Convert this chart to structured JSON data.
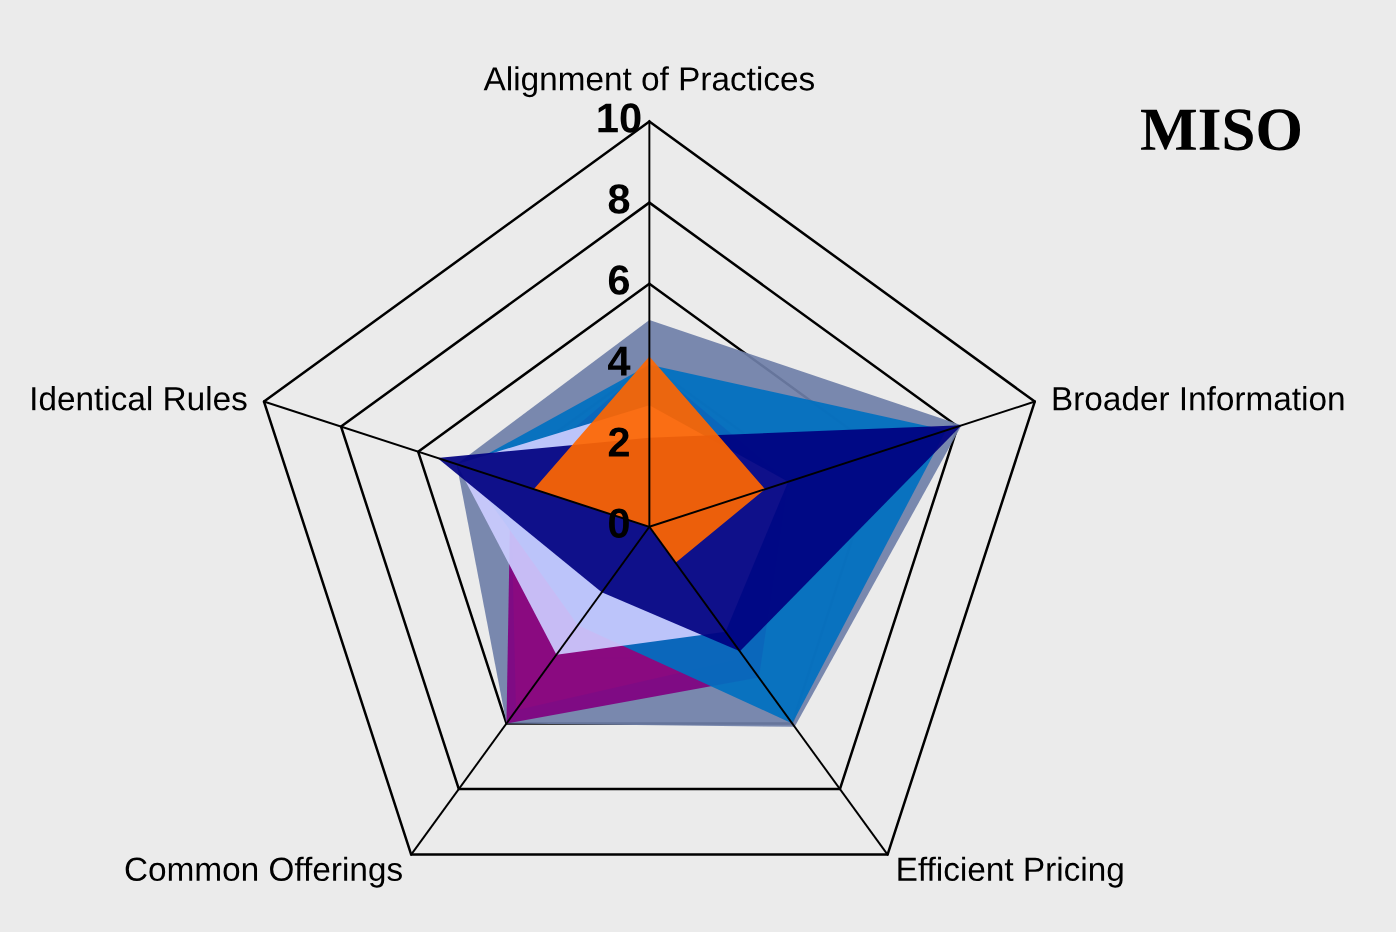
{
  "chart_data": {
    "type": "radar",
    "title": "MISO",
    "categories": [
      "Alignment of Practices",
      "Broader Information",
      "Efficient Pricing",
      "Common Offerings",
      "Identical Rules"
    ],
    "ylim": [
      0,
      10
    ],
    "yticks": [
      0,
      2,
      4,
      6,
      8,
      10
    ],
    "grid": true,
    "series": [
      {
        "color": "#6f7fa8",
        "values": [
          5.1,
          8.1,
          6.1,
          6.0,
          5.0
        ]
      },
      {
        "color": "#ff8080",
        "values": [
          3.5,
          3.6,
          4.0,
          5.6,
          3.6
        ]
      },
      {
        "color": "#800080",
        "values": [
          4.0,
          3.6,
          4.6,
          6.0,
          3.6
        ]
      },
      {
        "color": "#0070c0",
        "values": [
          4.0,
          7.7,
          6.0,
          3.0,
          4.8
        ]
      },
      {
        "color": "#ccccff",
        "values": [
          3.0,
          3.6,
          3.2,
          3.9,
          5.0
        ]
      },
      {
        "color": "#000080",
        "values": [
          2.2,
          8.1,
          3.8,
          2.0,
          5.5
        ]
      },
      {
        "color": "#ff6600",
        "values": [
          4.2,
          3.0,
          1.1,
          0.0,
          3.0
        ]
      }
    ]
  }
}
